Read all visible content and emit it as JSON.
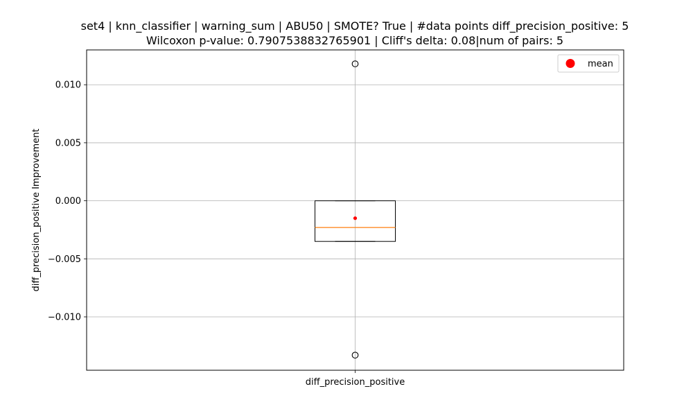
{
  "chart_data": {
    "type": "box",
    "title": "set4 | knn_classifier | warning_sum | ABU50 | SMOTE? True | #data points diff_precision_positive: 5",
    "subtitle": "Wilcoxon p-value: 0.7907538832765901 | Cliff's delta: 0.08|num of pairs: 5",
    "xlabel": "",
    "ylabel": "diff_precision_positive Improvement",
    "categories": [
      "diff_precision_positive"
    ],
    "yticks": [
      {
        "value": 0.01,
        "label": "0.010"
      },
      {
        "value": 0.005,
        "label": "0.005"
      },
      {
        "value": 0.0,
        "label": "0.000"
      },
      {
        "value": -0.005,
        "label": "−0.005"
      },
      {
        "value": -0.01,
        "label": "−0.010"
      }
    ],
    "ylim": [
      -0.0146,
      0.013
    ],
    "grid": true,
    "legend": {
      "position": "top-right",
      "entries": [
        {
          "label": "mean",
          "color": "#ff0000",
          "marker": "circle"
        }
      ]
    },
    "boxes": [
      {
        "category": "diff_precision_positive",
        "q1": -0.0035,
        "median": -0.0023,
        "q3": 0.0,
        "whisker_low": -0.0035,
        "whisker_high": 0.0,
        "mean": -0.0015,
        "outliers": [
          0.0118,
          -0.0133
        ]
      }
    ],
    "colors": {
      "median": "#ff7f0e",
      "mean": "#ff0000",
      "box": "#000000",
      "grid": "#b0b0b0"
    }
  }
}
